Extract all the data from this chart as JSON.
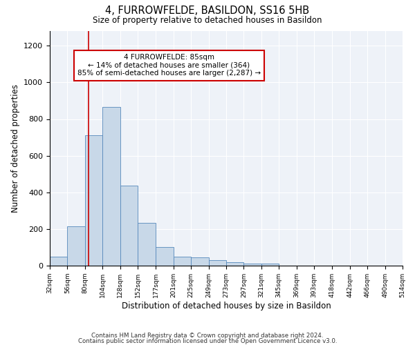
{
  "title": "4, FURROWFELDE, BASILDON, SS16 5HB",
  "subtitle": "Size of property relative to detached houses in Basildon",
  "xlabel": "Distribution of detached houses by size in Basildon",
  "ylabel": "Number of detached properties",
  "bar_edges": [
    32,
    56,
    80,
    104,
    128,
    152,
    177,
    201,
    225,
    249,
    273,
    297,
    321,
    345,
    369,
    393,
    418,
    442,
    466,
    490,
    514
  ],
  "bar_heights": [
    50,
    213,
    710,
    865,
    435,
    232,
    102,
    48,
    45,
    30,
    19,
    10,
    10,
    0,
    0,
    0,
    0,
    0,
    0,
    0
  ],
  "bar_color": "#c8d8e8",
  "bar_edgecolor": "#5588bb",
  "vline_x": 85,
  "vline_color": "#cc0000",
  "annotation_line1": "4 FURROWFELDE: 85sqm",
  "annotation_line2": "← 14% of detached houses are smaller (364)",
  "annotation_line3": "85% of semi-detached houses are larger (2,287) →",
  "annotation_box_color": "#cc0000",
  "annotation_box_facecolor": "white",
  "ylim": [
    0,
    1280
  ],
  "yticks": [
    0,
    200,
    400,
    600,
    800,
    1000,
    1200
  ],
  "bg_color": "#eef2f8",
  "footnote_line1": "Contains HM Land Registry data © Crown copyright and database right 2024.",
  "footnote_line2": "Contains public sector information licensed under the Open Government Licence v3.0.",
  "tick_labels": [
    "32sqm",
    "56sqm",
    "80sqm",
    "104sqm",
    "128sqm",
    "152sqm",
    "177sqm",
    "201sqm",
    "225sqm",
    "249sqm",
    "273sqm",
    "297sqm",
    "321sqm",
    "345sqm",
    "369sqm",
    "393sqm",
    "418sqm",
    "442sqm",
    "466sqm",
    "490sqm",
    "514sqm"
  ]
}
